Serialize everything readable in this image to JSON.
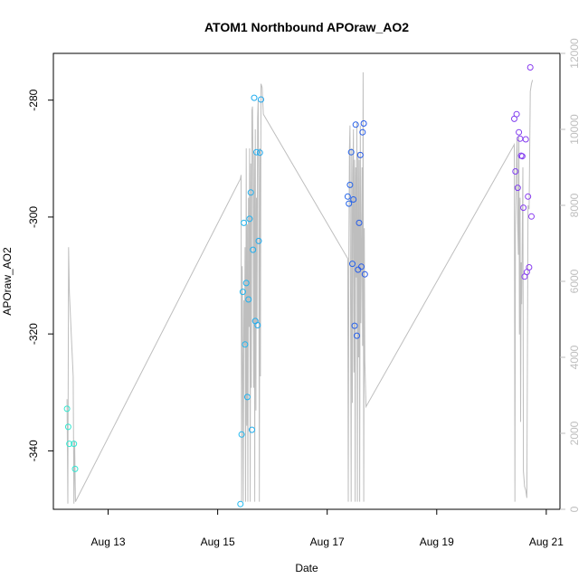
{
  "chart_data": {
    "type": "scatter",
    "title": "ATOM1 Northbound APOraw_AO2",
    "xlabel": "Date",
    "ylabel": "APOraw_AO2",
    "x_ticks": [
      "Aug 13",
      "Aug 15",
      "Aug 17",
      "Aug 19",
      "Aug 21"
    ],
    "xlim": [
      "2020-08-12 00:00",
      "2020-08-21 06:00"
    ],
    "ylim": [
      -350,
      -272
    ],
    "y_ticks": [
      -280,
      -300,
      -320,
      -340
    ],
    "y2lim": [
      0,
      12000
    ],
    "y2_ticks": [
      0,
      2000,
      4000,
      6000,
      8000,
      10000,
      12000
    ],
    "y2_color": "#bebebe",
    "point_colors": [
      "#33e8d0",
      "#1ec6f0",
      "#2850e8",
      "#8a3cf0"
    ],
    "series": [
      {
        "style": "points",
        "color_axis": "time",
        "x": [
          "2020-08-12 06:00",
          "2020-08-12 06:30",
          "2020-08-12 07:00",
          "2020-08-12 09:00",
          "2020-08-12 09:30",
          "2020-08-15 10:00",
          "2020-08-15 10:30",
          "2020-08-15 11:00",
          "2020-08-15 11:30",
          "2020-08-15 12:00",
          "2020-08-15 12:30",
          "2020-08-15 13:00",
          "2020-08-15 13:30",
          "2020-08-15 14:00",
          "2020-08-15 14:30",
          "2020-08-15 15:00",
          "2020-08-15 15:30",
          "2020-08-15 16:00",
          "2020-08-15 16:30",
          "2020-08-15 17:00",
          "2020-08-15 17:30",
          "2020-08-15 18:00",
          "2020-08-15 18:30",
          "2020-08-15 19:00",
          "2020-08-17 09:00",
          "2020-08-17 09:30",
          "2020-08-17 10:00",
          "2020-08-17 10:30",
          "2020-08-17 11:00",
          "2020-08-17 11:30",
          "2020-08-17 12:00",
          "2020-08-17 12:30",
          "2020-08-17 13:00",
          "2020-08-17 13:30",
          "2020-08-17 14:00",
          "2020-08-17 14:30",
          "2020-08-17 15:00",
          "2020-08-17 15:30",
          "2020-08-17 16:00",
          "2020-08-17 16:30",
          "2020-08-20 10:00",
          "2020-08-20 10:30",
          "2020-08-20 11:00",
          "2020-08-20 11:30",
          "2020-08-20 12:00",
          "2020-08-20 12:30",
          "2020-08-20 13:00",
          "2020-08-20 13:30",
          "2020-08-20 14:00",
          "2020-08-20 14:30",
          "2020-08-20 15:00",
          "2020-08-20 15:30",
          "2020-08-20 16:00",
          "2020-08-20 16:30",
          "2020-08-20 17:00",
          "2020-08-20 17:30"
        ],
        "y": [
          -332.8,
          -335.9,
          -338.8,
          -338.8,
          -343.1,
          -349.1,
          -337.2,
          -312.8,
          -301.0,
          -321.8,
          -311.3,
          -330.8,
          -314.1,
          -300.3,
          -295.8,
          -336.4,
          -305.6,
          -279.6,
          -317.8,
          -288.9,
          -318.5,
          -304.1,
          -289.0,
          -279.9,
          -296.5,
          -297.7,
          -294.5,
          -288.9,
          -308.0,
          -297.0,
          -318.6,
          -284.2,
          -320.3,
          -309.0,
          -301.0,
          -289.4,
          -308.5,
          -285.5,
          -284.0,
          -309.8,
          -283.2,
          -292.2,
          -282.4,
          -295.0,
          -285.5,
          -286.6,
          -289.5,
          -289.6,
          -298.4,
          -310.2,
          -286.7,
          -309.4,
          -296.5,
          -308.6,
          -274.4,
          -299.9
        ]
      },
      {
        "style": "line",
        "axis": "right",
        "color": "#bebebe",
        "x": [
          "2020-08-12 06:00",
          "2020-08-12 06:20",
          "2020-08-12 06:40",
          "2020-08-12 07:00",
          "2020-08-12 08:40",
          "2020-08-12 09:00",
          "2020-08-12 09:20",
          "2020-08-12 09:40",
          "2020-08-15 10:00",
          "2020-08-15 10:15",
          "2020-08-15 10:30",
          "2020-08-15 10:45",
          "2020-08-15 11:00",
          "2020-08-15 11:15",
          "2020-08-15 11:30",
          "2020-08-15 11:45",
          "2020-08-15 12:00",
          "2020-08-15 12:15",
          "2020-08-15 12:30",
          "2020-08-15 12:45",
          "2020-08-15 13:00",
          "2020-08-15 13:15",
          "2020-08-15 13:30",
          "2020-08-15 13:45",
          "2020-08-15 14:00",
          "2020-08-15 14:15",
          "2020-08-15 14:30",
          "2020-08-15 14:45",
          "2020-08-15 15:00",
          "2020-08-15 15:15",
          "2020-08-15 15:30",
          "2020-08-15 15:45",
          "2020-08-15 16:00",
          "2020-08-15 16:15",
          "2020-08-15 16:30",
          "2020-08-15 16:45",
          "2020-08-15 17:00",
          "2020-08-15 17:15",
          "2020-08-15 17:30",
          "2020-08-15 17:45",
          "2020-08-15 18:00",
          "2020-08-15 18:15",
          "2020-08-15 18:30",
          "2020-08-15 18:45",
          "2020-08-15 19:00",
          "2020-08-15 19:30",
          "2020-08-15 20:00",
          "2020-08-17 09:00",
          "2020-08-17 09:15",
          "2020-08-17 09:30",
          "2020-08-17 09:45",
          "2020-08-17 10:00",
          "2020-08-17 10:15",
          "2020-08-17 10:30",
          "2020-08-17 10:45",
          "2020-08-17 11:00",
          "2020-08-17 11:15",
          "2020-08-17 11:30",
          "2020-08-17 11:45",
          "2020-08-17 12:00",
          "2020-08-17 12:15",
          "2020-08-17 12:30",
          "2020-08-17 12:45",
          "2020-08-17 13:00",
          "2020-08-17 13:15",
          "2020-08-17 13:30",
          "2020-08-17 13:45",
          "2020-08-17 14:00",
          "2020-08-17 14:15",
          "2020-08-17 14:30",
          "2020-08-17 14:45",
          "2020-08-17 15:00",
          "2020-08-17 15:15",
          "2020-08-17 15:30",
          "2020-08-17 15:45",
          "2020-08-17 16:00",
          "2020-08-17 16:15",
          "2020-08-17 16:30",
          "2020-08-17 17:00",
          "2020-08-20 10:00",
          "2020-08-20 10:15",
          "2020-08-20 10:30",
          "2020-08-20 10:45",
          "2020-08-20 11:00",
          "2020-08-20 11:15",
          "2020-08-20 11:30",
          "2020-08-20 11:45",
          "2020-08-20 12:00",
          "2020-08-20 12:15",
          "2020-08-20 12:30",
          "2020-08-20 12:45",
          "2020-08-20 13:00",
          "2020-08-20 13:15",
          "2020-08-20 13:30",
          "2020-08-20 13:45",
          "2020-08-20 14:00",
          "2020-08-20 14:30",
          "2020-08-20 15:00",
          "2020-08-20 15:30",
          "2020-08-20 16:00",
          "2020-08-20 16:30",
          "2020-08-20 17:00",
          "2020-08-20 17:30",
          "2020-08-20 18:00"
        ],
        "y": [
          2900,
          150,
          6900,
          5700,
          3500,
          150,
          1800,
          200,
          8700,
          8800,
          200,
          6400,
          3800,
          200,
          5500,
          4300,
          6900,
          200,
          9500,
          2200,
          7500,
          200,
          8200,
          4800,
          9500,
          200,
          9100,
          3200,
          10500,
          10600,
          9000,
          3200,
          9400,
          200,
          10000,
          2600,
          8200,
          4900,
          10300,
          10800,
          8500,
          200,
          9500,
          3500,
          11200,
          11100,
          10400,
          6600,
          200,
          6900,
          9500,
          10100,
          5000,
          200,
          9500,
          2800,
          8900,
          10000,
          3600,
          9200,
          200,
          9000,
          6100,
          10200,
          200,
          9400,
          4000,
          9200,
          200,
          10100,
          4900,
          6600,
          9000,
          4300,
          11500,
          200,
          7400,
          3900,
          2700,
          9600,
          200,
          7500,
          8300,
          9400,
          9800,
          7500,
          6700,
          9800,
          4600,
          8200,
          2300,
          6500,
          5400,
          7400,
          9000,
          1000,
          600,
          500,
          300,
          8000,
          7900,
          11000,
          11200,
          11300
        ]
      }
    ]
  }
}
